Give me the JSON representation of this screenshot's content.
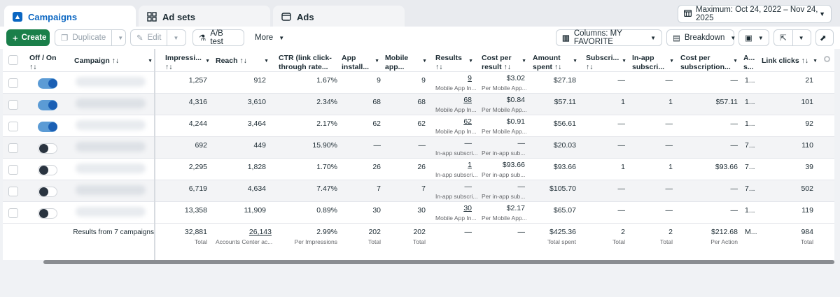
{
  "tabs": [
    {
      "label": "Campaigns",
      "icon": "campaigns-icon"
    },
    {
      "label": "Ad sets",
      "icon": "ad-sets-icon"
    },
    {
      "label": "Ads",
      "icon": "ads-icon"
    }
  ],
  "date_range": {
    "label": "Maximum: Oct 24, 2022 – Nov 24, 2025"
  },
  "toolbar": {
    "create": "Create",
    "duplicate": "Duplicate",
    "edit": "Edit",
    "ab_test": "A/B test",
    "more": "More",
    "columns": "Columns: MY FAVORITE",
    "breakdown": "Breakdown"
  },
  "headers": {
    "off_on": "Off / On",
    "campaign": "Campaign ↑↓",
    "impressions": "Impressi...",
    "reach": "Reach ↑↓",
    "ctr_1": "CTR (link click-",
    "ctr_2": "through rate...",
    "app_1": "App",
    "app_2": "install...",
    "mobile_1": "Mobile",
    "mobile_2": "app...",
    "results": "Results",
    "cpr_1": "Cost per",
    "cpr_2": "result ↑↓",
    "spent_1": "Amount",
    "spent_2": "spent ↑↓",
    "subs": "Subscri...",
    "inapp_1": "In-app",
    "inapp_2": "subscri...",
    "cps_1": "Cost per",
    "cps_2": "subscription...",
    "as_1": "A...",
    "as_2": "s...",
    "link_clicks": "Link clicks ↑↓",
    "sort": "↑↓"
  },
  "rows": [
    {
      "on": true,
      "impressions": "1,257",
      "reach": "912",
      "ctr": "1.67%",
      "app": "9",
      "mobile": "9",
      "results": "9",
      "results_sub": "Mobile App In...",
      "cpr": "$3.02",
      "cpr_sub": "Per Mobile App...",
      "spent": "$27.18",
      "subs": "—",
      "inapp": "—",
      "cps": "—",
      "as": "1...",
      "clicks": "21"
    },
    {
      "on": true,
      "impressions": "4,316",
      "reach": "3,610",
      "ctr": "2.34%",
      "app": "68",
      "mobile": "68",
      "results": "68",
      "results_sub": "Mobile App In...",
      "cpr": "$0.84",
      "cpr_sub": "Per Mobile App...",
      "spent": "$57.11",
      "subs": "1",
      "inapp": "1",
      "cps": "$57.11",
      "as": "1...",
      "clicks": "101"
    },
    {
      "on": true,
      "impressions": "4,244",
      "reach": "3,464",
      "ctr": "2.17%",
      "app": "62",
      "mobile": "62",
      "results": "62",
      "results_sub": "Mobile App In...",
      "cpr": "$0.91",
      "cpr_sub": "Per Mobile App...",
      "spent": "$56.61",
      "subs": "—",
      "inapp": "—",
      "cps": "—",
      "as": "1...",
      "clicks": "92"
    },
    {
      "on": false,
      "impressions": "692",
      "reach": "449",
      "ctr": "15.90%",
      "app": "—",
      "mobile": "—",
      "results": "—",
      "results_sub": "In-app subscri...",
      "cpr": "—",
      "cpr_sub": "Per in-app sub...",
      "spent": "$20.03",
      "subs": "—",
      "inapp": "—",
      "cps": "—",
      "as": "7...",
      "clicks": "110"
    },
    {
      "on": false,
      "impressions": "2,295",
      "reach": "1,828",
      "ctr": "1.70%",
      "app": "26",
      "mobile": "26",
      "results": "1",
      "results_sub": "In-app subscri...",
      "cpr": "$93.66",
      "cpr_sub": "Per in-app sub...",
      "spent": "$93.66",
      "subs": "1",
      "inapp": "1",
      "cps": "$93.66",
      "as": "7...",
      "clicks": "39"
    },
    {
      "on": false,
      "impressions": "6,719",
      "reach": "4,634",
      "ctr": "7.47%",
      "app": "7",
      "mobile": "7",
      "results": "—",
      "results_sub": "In-app subscri...",
      "cpr": "—",
      "cpr_sub": "Per in-app sub...",
      "spent": "$105.70",
      "subs": "—",
      "inapp": "—",
      "cps": "—",
      "as": "7...",
      "clicks": "502"
    },
    {
      "on": false,
      "impressions": "13,358",
      "reach": "11,909",
      "ctr": "0.89%",
      "app": "30",
      "mobile": "30",
      "results": "30",
      "results_sub": "Mobile App In...",
      "cpr": "$2.17",
      "cpr_sub": "Per Mobile App...",
      "spent": "$65.07",
      "subs": "—",
      "inapp": "—",
      "cps": "—",
      "as": "1...",
      "clicks": "119"
    }
  ],
  "footer": {
    "label": "Results from 7 campaigns",
    "impressions": "32,881",
    "impressions_sub": "Total",
    "reach": "26,143",
    "reach_sub": "Accounts Center ac...",
    "ctr": "2.99%",
    "ctr_sub": "Per Impressions",
    "app": "202",
    "app_sub": "Total",
    "mobile": "202",
    "mobile_sub": "Total",
    "results": "—",
    "cpr": "—",
    "spent": "$425.36",
    "spent_sub": "Total spent",
    "subs": "2",
    "subs_sub": "Total",
    "inapp": "2",
    "inapp_sub": "Total",
    "cps": "$212.68",
    "cps_sub": "Per Action",
    "as": "M...",
    "clicks": "984",
    "clicks_sub": "Total"
  },
  "colors": {
    "accent": "#0a66c2",
    "create": "#1a7f4a",
    "toggle_on": "#1a5fb4"
  }
}
